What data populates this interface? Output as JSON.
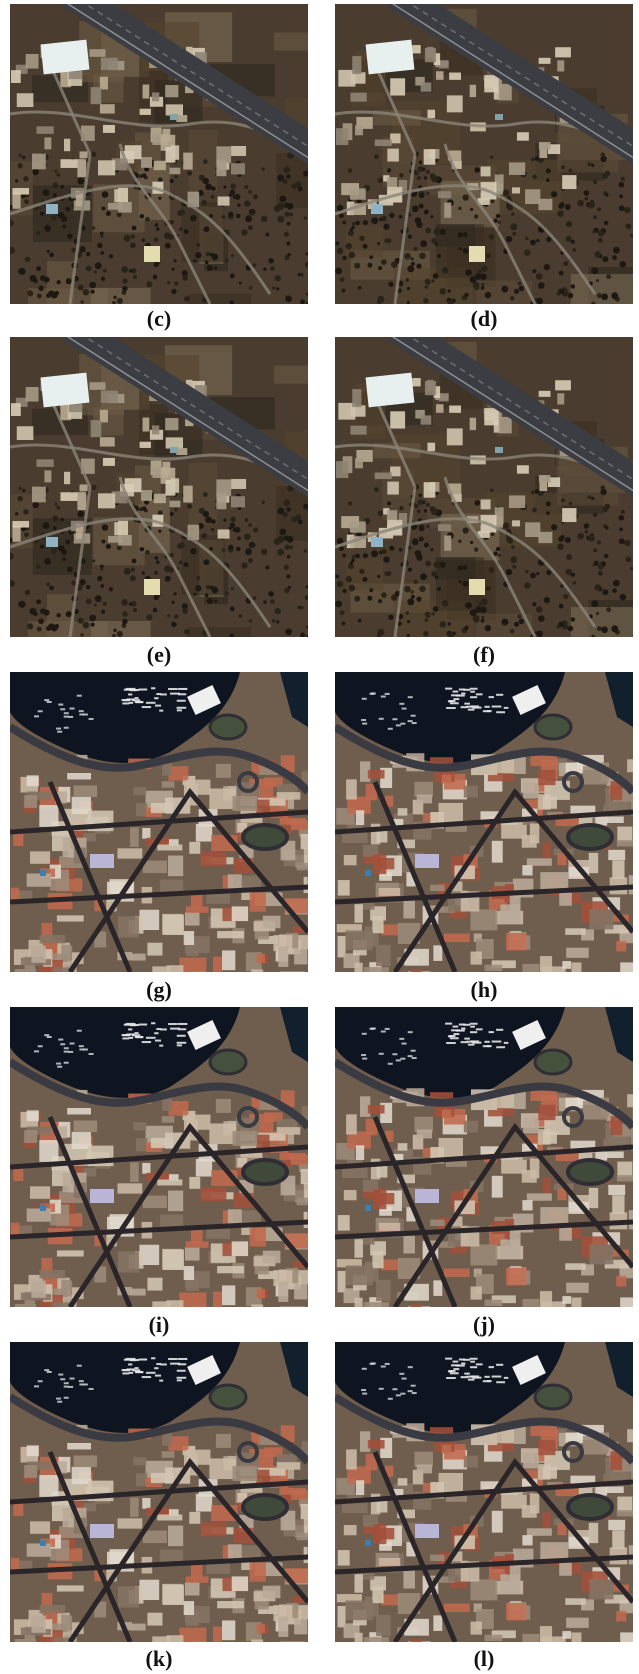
{
  "figure": {
    "panels": [
      {
        "label": "(c)",
        "scene": "suburban"
      },
      {
        "label": "(d)",
        "scene": "suburban"
      },
      {
        "label": "(e)",
        "scene": "suburban"
      },
      {
        "label": "(f)",
        "scene": "suburban"
      },
      {
        "label": "(g)",
        "scene": "harbor"
      },
      {
        "label": "(h)",
        "scene": "harbor"
      },
      {
        "label": "(i)",
        "scene": "harbor"
      },
      {
        "label": "(j)",
        "scene": "harbor"
      },
      {
        "label": "(k)",
        "scene": "harbor"
      },
      {
        "label": "(l)",
        "scene": "harbor"
      }
    ]
  }
}
